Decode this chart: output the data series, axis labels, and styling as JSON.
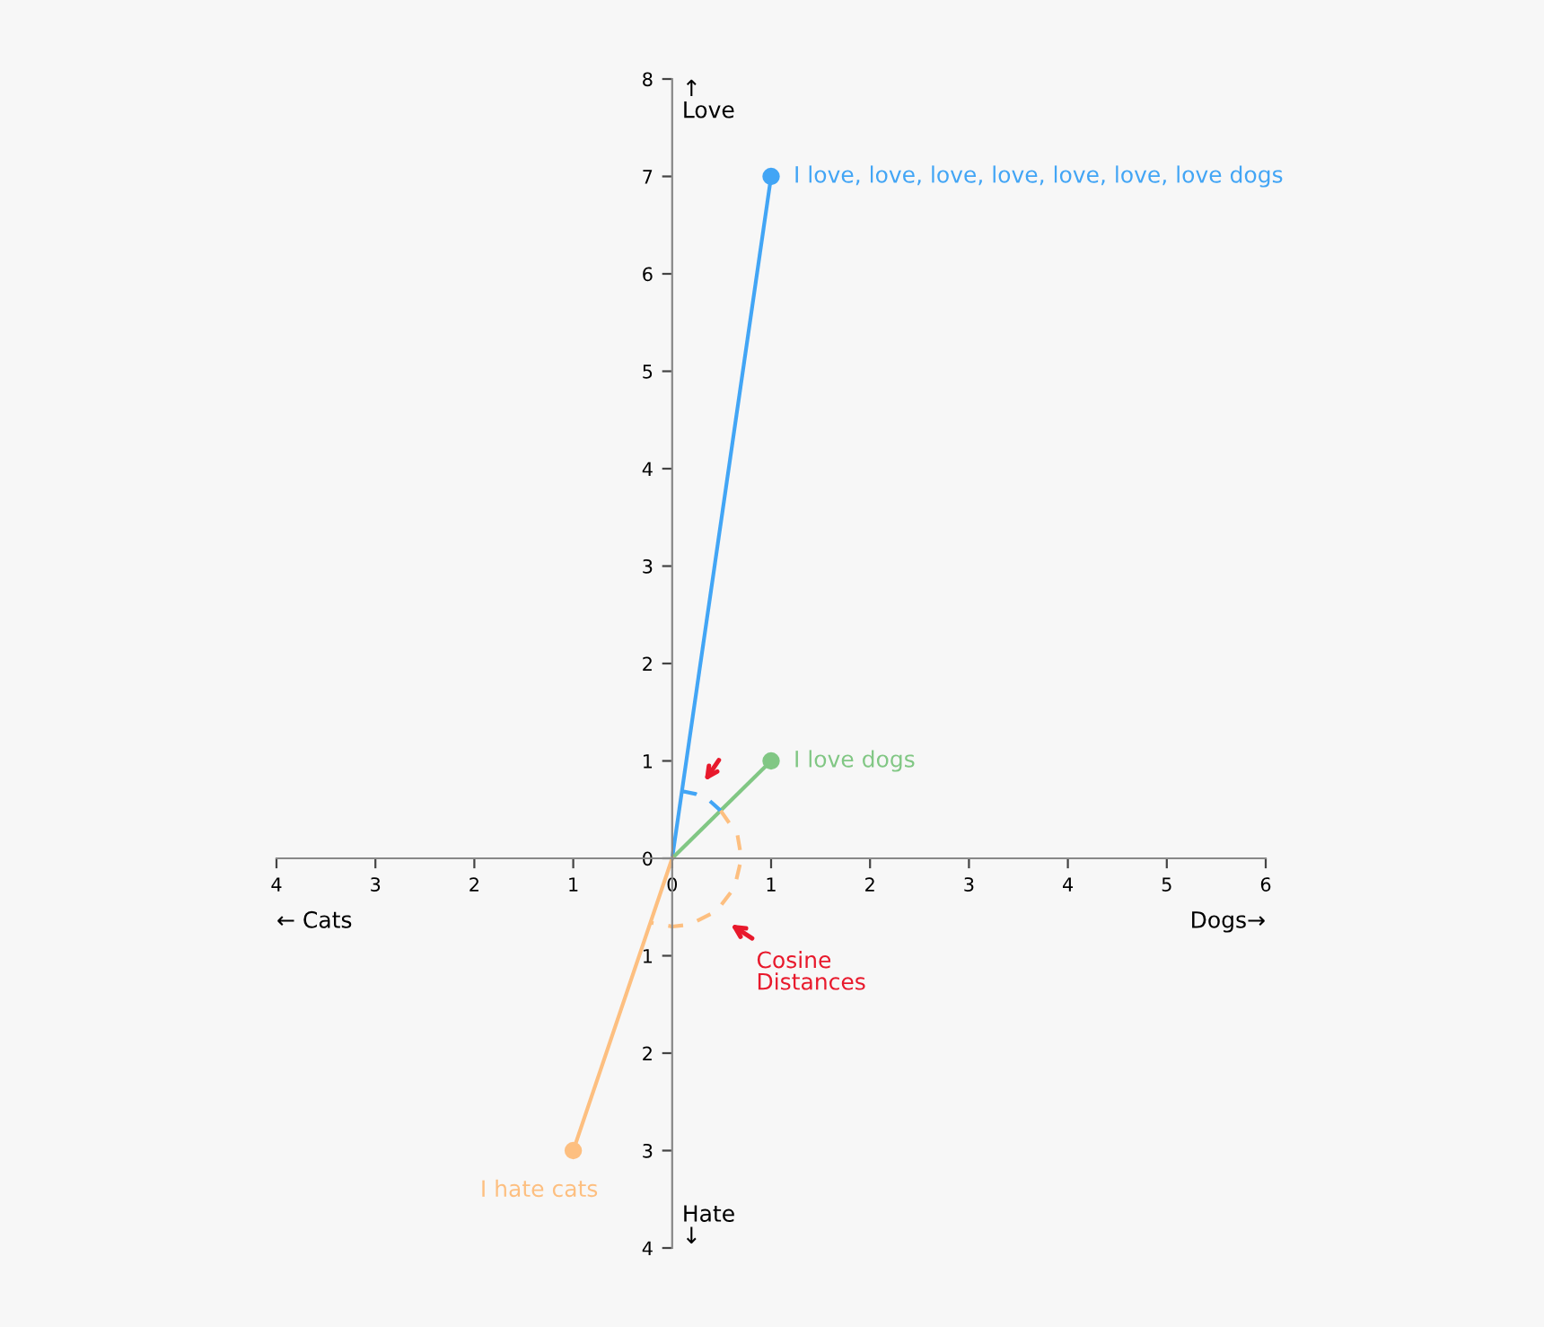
{
  "chart_data": {
    "type": "line",
    "xlabel": "Dogs→",
    "ylabel": "↑\nLove",
    "xlim": [
      -4,
      6
    ],
    "ylim": [
      -4,
      8
    ],
    "xticks": [
      {
        "value": -4,
        "label": "4"
      },
      {
        "value": -3,
        "label": "3"
      },
      {
        "value": -2,
        "label": "2"
      },
      {
        "value": -1,
        "label": "1"
      },
      0,
      1,
      2,
      3,
      4,
      5,
      6
    ],
    "yticks": [
      {
        "value": -4,
        "label": "4"
      },
      {
        "value": -3,
        "label": "3"
      },
      {
        "value": -2,
        "label": "2"
      },
      {
        "value": -1,
        "label": "1"
      },
      0,
      1,
      2,
      3,
      4,
      5,
      6,
      7,
      8
    ],
    "grid": false,
    "legend": false,
    "series": [
      {
        "name": "I love, love, love, love, love, love, love dogs",
        "color": "#42a5f5",
        "x": [
          0,
          1
        ],
        "values": [
          0,
          7
        ],
        "marker": "circle",
        "line_style": "solid"
      },
      {
        "name": "I love dogs",
        "color": "#81c784",
        "x": [
          0,
          1
        ],
        "values": [
          0,
          1
        ],
        "marker": "circle",
        "line_style": "solid"
      },
      {
        "name": "I hate cats",
        "color": "#fdbf80",
        "x": [
          0,
          -1
        ],
        "values": [
          0,
          -3
        ],
        "marker": "circle",
        "line_style": "solid"
      },
      {
        "color": "#42a5f5",
        "x": [
          0.1,
          0.24,
          0.38,
          0.49
        ],
        "values": [
          0.69,
          0.66,
          0.59,
          0.49
        ],
        "marker": "none",
        "line_style": "dashed"
      },
      {
        "color": "#fdbf80",
        "x": [
          0.49,
          0.66,
          0.7,
          0.63,
          0.45,
          0.18,
          0,
          -0.22
        ],
        "values": [
          0.49,
          0.24,
          0,
          -0.3,
          -0.54,
          -0.68,
          -0.7,
          -0.66
        ],
        "marker": "none",
        "line_style": "dashed"
      }
    ],
    "annotations": [
      "← Cats",
      "Hate\n↓",
      "Cosine\nDistances"
    ]
  }
}
